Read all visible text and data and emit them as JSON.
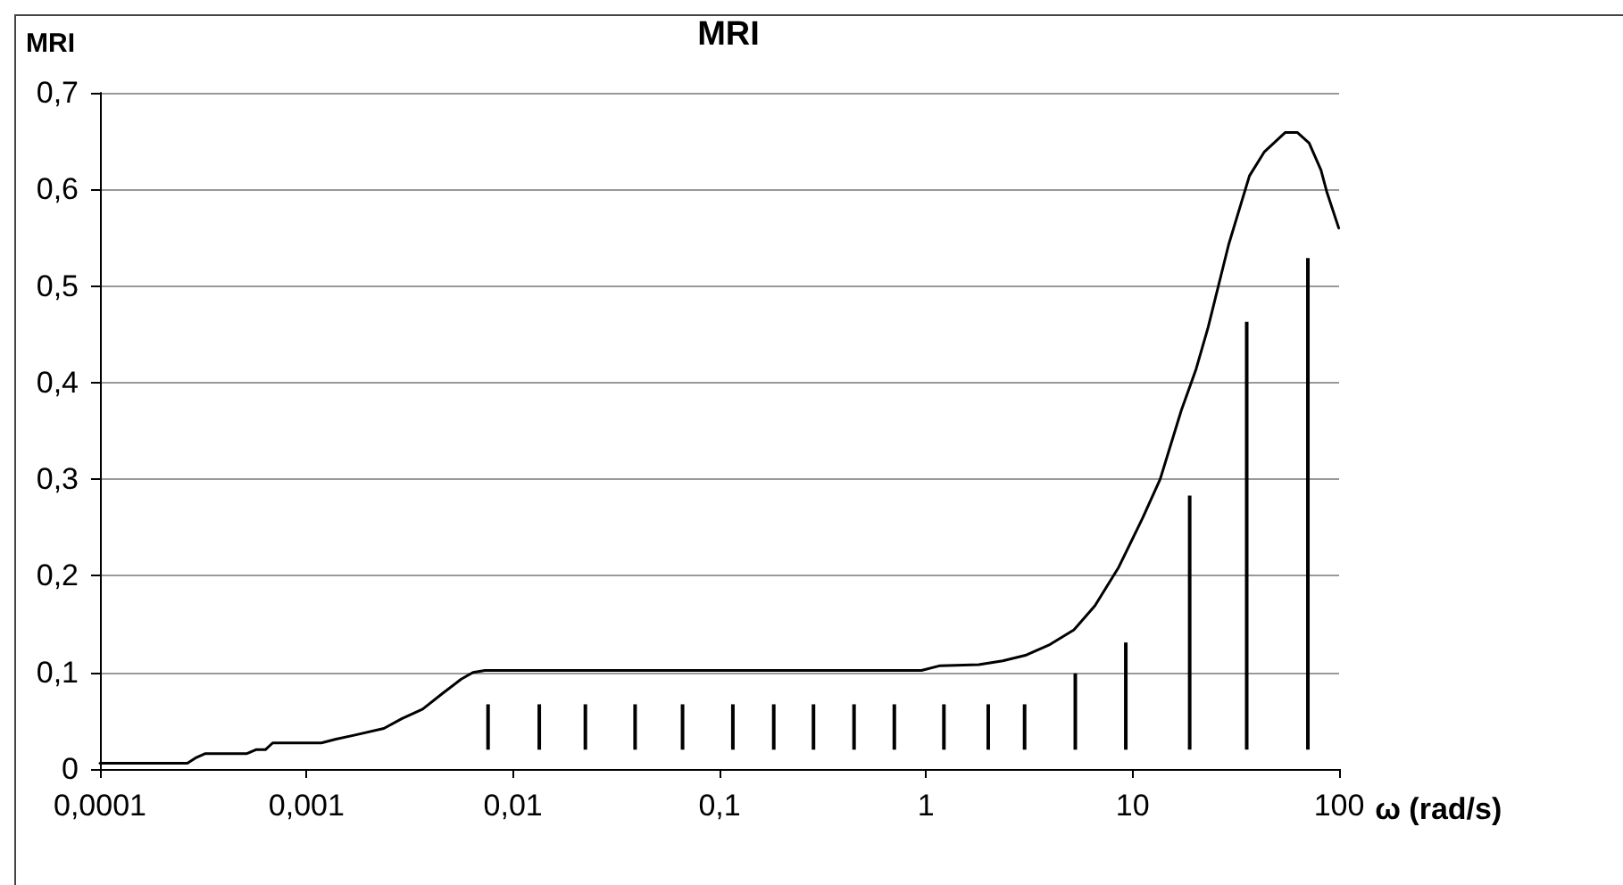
{
  "chart_data": {
    "type": "line",
    "title": "MRI",
    "xlabel": "ω (rad/s)",
    "ylabel": "MRI",
    "log": "x",
    "grid": "y",
    "marker": "none",
    "line_style": "solid",
    "xlim": [
      0.0001,
      100
    ],
    "xticks": [
      {
        "value": 0.0001,
        "label": "0,0001"
      },
      {
        "value": 0.001,
        "label": "0,001"
      },
      {
        "value": 0.01,
        "label": "0,01"
      },
      {
        "value": 0.1,
        "label": "0,1"
      },
      1,
      10,
      100
    ],
    "ylim": [
      0,
      0.7
    ],
    "yticks": [
      0,
      {
        "value": 0.1,
        "label": "0,1"
      },
      {
        "value": 0.2,
        "label": "0,2"
      },
      {
        "value": 0.3,
        "label": "0,3"
      },
      {
        "value": 0.4,
        "label": "0,4"
      },
      {
        "value": 0.5,
        "label": "0,5"
      },
      {
        "value": 0.6,
        "label": "0,6"
      },
      {
        "value": 0.7,
        "label": "0,7"
      }
    ],
    "series": [
      {
        "color": "#000000",
        "x": [
          0.0001,
          0.000265,
          0.000293,
          0.000324,
          0.000515,
          0.000569,
          0.000632,
          0.000686,
          0.00118,
          0.00139,
          0.0017,
          0.00237,
          0.00289,
          0.00365,
          0.0046,
          0.00561,
          0.0064,
          0.00731,
          0.95,
          1.17,
          1.8,
          2.35,
          3.06,
          3.99,
          5.2,
          6.57,
          8.57,
          11.2,
          13.6,
          17.2,
          20.3,
          23.2,
          29.2,
          36.8,
          43.5,
          54.9,
          62.7,
          71.6,
          81.7,
          87.3,
          99.6
        ],
        "values": [
          0.006,
          0.006,
          0.012,
          0.016,
          0.016,
          0.02,
          0.02,
          0.027,
          0.027,
          0.031,
          0.035,
          0.042,
          0.052,
          0.062,
          0.079,
          0.093,
          0.1,
          0.102,
          0.102,
          0.107,
          0.108,
          0.112,
          0.118,
          0.129,
          0.144,
          0.169,
          0.209,
          0.26,
          0.3,
          0.371,
          0.414,
          0.457,
          0.543,
          0.614,
          0.639,
          0.659,
          0.659,
          0.648,
          0.62,
          0.597,
          0.56
        ]
      },
      {
        "type": "bar",
        "color": "#000000",
        "x": [
          0.00757,
          0.0134,
          0.0224,
          0.039,
          0.0662,
          0.116,
          0.183,
          0.285,
          0.448,
          0.702,
          1.22,
          2.0,
          3.0,
          5.28,
          9.27,
          18.9,
          35.7,
          70.6
        ],
        "base": [
          0.02,
          0.02,
          0.02,
          0.02,
          0.02,
          0.02,
          0.02,
          0.02,
          0.02,
          0.02,
          0.02,
          0.02,
          0.02,
          0.02,
          0.02,
          0.02,
          0.02,
          0.02
        ],
        "values": [
          0.047,
          0.047,
          0.047,
          0.047,
          0.047,
          0.047,
          0.047,
          0.047,
          0.047,
          0.047,
          0.047,
          0.047,
          0.047,
          0.079,
          0.111,
          0.263,
          0.443,
          0.509
        ]
      }
    ]
  }
}
